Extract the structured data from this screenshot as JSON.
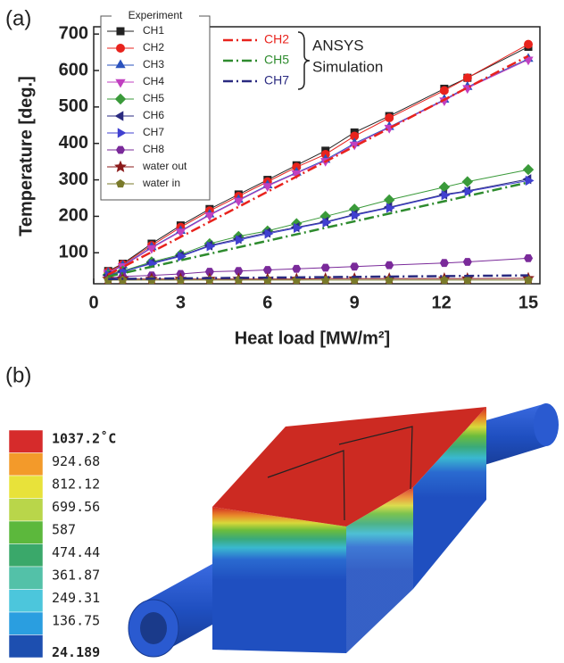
{
  "panel_a_label": "(a)",
  "panel_b_label": "(b)",
  "chart_data": {
    "type": "line",
    "ylabel": "Temperature [deg.]",
    "xlabel": "Heat load [MW/m²]",
    "legend_title": "Experiment",
    "simulation_label": [
      "ANSYS",
      "Simulation"
    ],
    "xlim": [
      0,
      15.4
    ],
    "ylim": [
      15,
      720
    ],
    "xticks": [
      0,
      3,
      6,
      9,
      12,
      15
    ],
    "yticks": [
      100,
      200,
      300,
      400,
      500,
      600,
      700
    ],
    "x": [
      0.5,
      1,
      2,
      3,
      4,
      5,
      6,
      7,
      8,
      9,
      10.2,
      12.1,
      12.9,
      15
    ],
    "series": [
      {
        "name": "CH1",
        "color": "#222222",
        "marker": "square",
        "values": [
          50,
          70,
          125,
          175,
          220,
          260,
          300,
          340,
          380,
          430,
          475,
          550,
          580,
          665
        ]
      },
      {
        "name": "CH2",
        "color": "#e8231d",
        "marker": "circle",
        "values": [
          48,
          68,
          120,
          170,
          215,
          255,
          295,
          335,
          370,
          420,
          470,
          545,
          580,
          672
        ]
      },
      {
        "name": "CH3",
        "color": "#2a52be",
        "marker": "triangle-up",
        "values": [
          45,
          65,
          115,
          160,
          205,
          245,
          285,
          320,
          355,
          400,
          445,
          520,
          555,
          632
        ]
      },
      {
        "name": "CH4",
        "color": "#c040c0",
        "marker": "triangle-down",
        "values": [
          45,
          63,
          113,
          158,
          203,
          243,
          283,
          318,
          352,
          397,
          443,
          518,
          552,
          630
        ]
      },
      {
        "name": "CH5",
        "color": "#3a9a3a",
        "marker": "diamond",
        "values": [
          40,
          50,
          75,
          95,
          125,
          145,
          160,
          180,
          200,
          220,
          245,
          280,
          295,
          328
        ]
      },
      {
        "name": "CH6",
        "color": "#2a2a80",
        "marker": "triangle-left",
        "values": [
          38,
          48,
          72,
          92,
          120,
          138,
          155,
          170,
          185,
          205,
          225,
          260,
          270,
          302
        ]
      },
      {
        "name": "CH7",
        "color": "#4040d0",
        "marker": "triangle-right",
        "values": [
          38,
          48,
          70,
          90,
          118,
          135,
          152,
          168,
          183,
          203,
          223,
          258,
          268,
          298
        ]
      },
      {
        "name": "CH8",
        "color": "#7a2a9a",
        "marker": "hexagon",
        "values": [
          30,
          35,
          38,
          42,
          48,
          50,
          53,
          56,
          59,
          62,
          66,
          72,
          75,
          85
        ]
      },
      {
        "name": "water out",
        "color": "#8b1a1a",
        "marker": "star",
        "values": [
          28,
          28,
          28,
          28,
          28,
          28,
          28,
          28,
          29,
          29,
          29,
          29,
          29,
          30
        ]
      },
      {
        "name": "water in",
        "color": "#7a7a2a",
        "marker": "pentagon",
        "values": [
          25,
          25,
          25,
          25,
          25,
          25,
          25,
          25,
          25,
          25,
          25,
          25,
          25,
          25
        ]
      }
    ],
    "simulation_series": [
      {
        "name": "CH2",
        "color": "#e8231d",
        "x": [
          0.5,
          15
        ],
        "values": [
          40,
          640
        ]
      },
      {
        "name": "CH5",
        "color": "#2e8b2e",
        "x": [
          0.5,
          15
        ],
        "values": [
          35,
          293
        ]
      },
      {
        "name": "CH7",
        "color": "#2a2a80",
        "x": [
          0.5,
          15
        ],
        "values": [
          28,
          38
        ]
      }
    ]
  },
  "figure_b": {
    "colorbar": {
      "labels": [
        "1037.2˚C",
        "924.68",
        "812.12",
        "699.56",
        "587",
        "474.44",
        "361.87",
        "249.31",
        "136.75",
        "24.189"
      ],
      "colors": [
        "#d62b2b",
        "#f39a2a",
        "#e8e23a",
        "#b9d64a",
        "#5cb83c",
        "#3aa86a",
        "#53c1a8",
        "#4cc6dc",
        "#2a9ee0",
        "#1d4fb0"
      ]
    }
  }
}
